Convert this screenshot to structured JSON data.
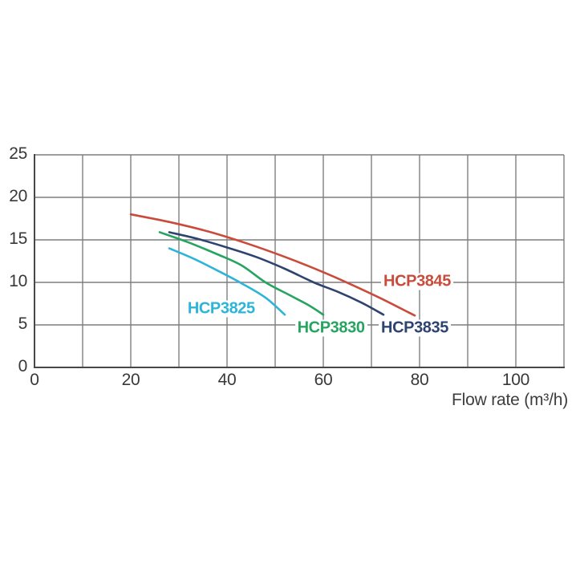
{
  "page": {
    "background": "#ffffff"
  },
  "chart_data": {
    "type": "line",
    "title": "",
    "xlabel": "Flow rate (m³/h)",
    "ylabel": "",
    "xlim": [
      0,
      110
    ],
    "ylim": [
      0,
      25
    ],
    "xticks": [
      0,
      20,
      40,
      60,
      80,
      100
    ],
    "yticks": [
      0,
      5,
      10,
      15,
      20,
      25
    ],
    "x_grid_step": 10,
    "y_grid_step": 5,
    "grid": true,
    "legend_position": "inline-labels",
    "colors": {
      "grid_color": "#7f7f7f",
      "axis_color": "#474747",
      "tick_text_color": "#383838",
      "axis_title_color": "#3d3d3d"
    },
    "series": [
      {
        "name": "HCP3825",
        "color": "#2cb5d8",
        "label_pos": [
          38.8,
          6.9
        ],
        "points": [
          [
            28,
            14.0
          ],
          [
            33,
            12.8
          ],
          [
            38,
            11.4
          ],
          [
            43,
            9.9
          ],
          [
            48,
            8.2
          ],
          [
            52,
            6.2
          ]
        ]
      },
      {
        "name": "HCP3830",
        "color": "#27a45f",
        "label_pos": [
          61.6,
          4.6
        ],
        "points": [
          [
            26,
            15.9
          ],
          [
            32,
            14.7
          ],
          [
            38,
            13.3
          ],
          [
            43,
            12.0
          ],
          [
            48,
            10.0
          ],
          [
            53,
            8.5
          ],
          [
            57,
            7.3
          ],
          [
            60,
            6.2
          ]
        ]
      },
      {
        "name": "HCP3835",
        "color": "#2e4470",
        "label_pos": [
          79.0,
          4.6
        ],
        "points": [
          [
            28,
            15.9
          ],
          [
            34,
            15.1
          ],
          [
            40,
            14.1
          ],
          [
            46,
            13.0
          ],
          [
            52,
            11.6
          ],
          [
            58,
            10.0
          ],
          [
            63,
            8.9
          ],
          [
            68,
            7.6
          ],
          [
            72.5,
            6.2
          ]
        ]
      },
      {
        "name": "HCP3845",
        "color": "#c94b3b",
        "label_pos": [
          79.5,
          10.1
        ],
        "points": [
          [
            20,
            18.0
          ],
          [
            28,
            17.1
          ],
          [
            36,
            16.0
          ],
          [
            44,
            14.6
          ],
          [
            52,
            13.0
          ],
          [
            60,
            11.2
          ],
          [
            66,
            9.7
          ],
          [
            72,
            8.1
          ],
          [
            79,
            6.1
          ]
        ]
      }
    ]
  }
}
